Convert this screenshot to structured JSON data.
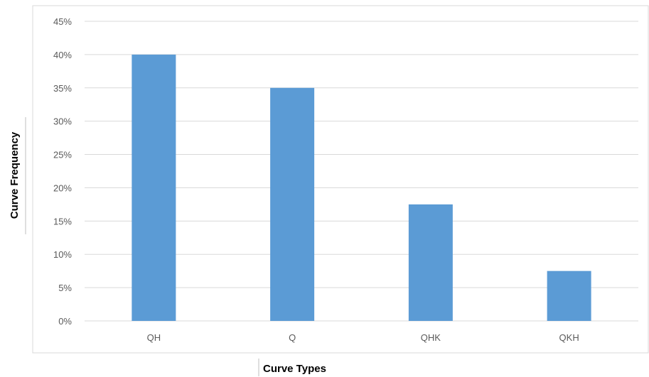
{
  "chart_data": {
    "type": "bar",
    "categories": [
      "QH",
      "Q",
      "QHK",
      "QKH"
    ],
    "values": [
      0.4,
      0.35,
      0.175,
      0.075
    ],
    "xlabel": "Curve Types",
    "ylabel": "Curve Frequency",
    "ylim": [
      0,
      0.45
    ],
    "yticks": [
      "0%",
      "5%",
      "10%",
      "15%",
      "20%",
      "25%",
      "30%",
      "35%",
      "40%",
      "45%"
    ],
    "bar_color": "#5b9bd5",
    "grid": true,
    "legend": "none"
  }
}
